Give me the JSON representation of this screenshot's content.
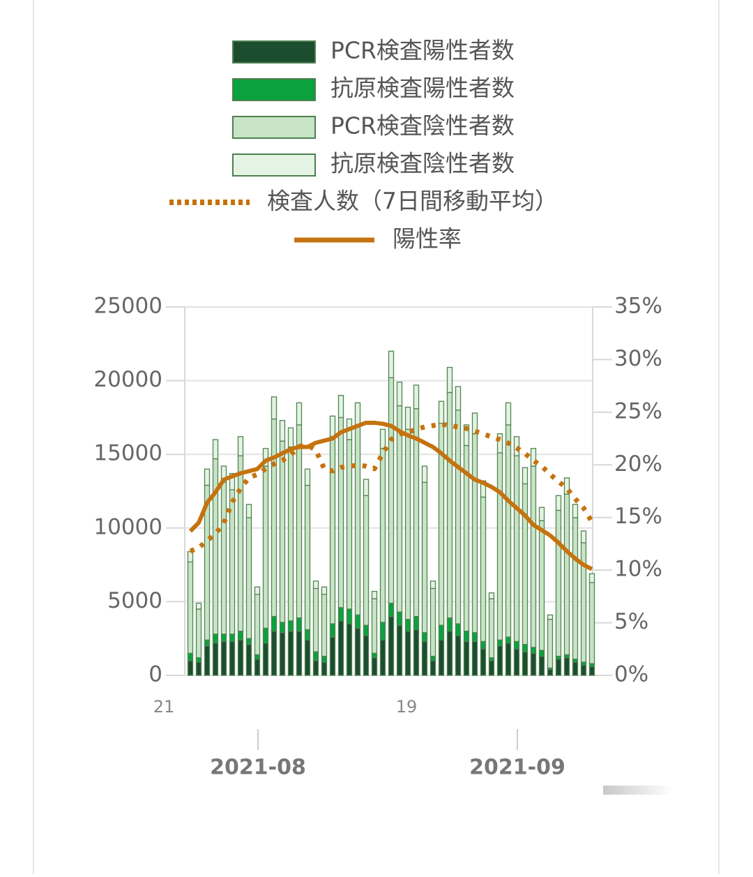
{
  "chart_data": {
    "type": "bar",
    "categories": [
      "21",
      null,
      null,
      null,
      null,
      null,
      null,
      null,
      null,
      null,
      null,
      null,
      null,
      null,
      null,
      null,
      null,
      null,
      null,
      null,
      null,
      null,
      null,
      null,
      null,
      null,
      null,
      null,
      null,
      "19",
      null,
      null,
      null,
      null,
      null,
      null,
      null,
      null,
      null,
      null,
      null,
      null,
      null,
      null,
      null,
      null,
      null,
      null,
      null,
      null,
      null,
      null
    ],
    "months": [
      null,
      null,
      null,
      null,
      null,
      null,
      null,
      null,
      null,
      null,
      null,
      "2021-08",
      null,
      null,
      null,
      null,
      null,
      null,
      null,
      null,
      null,
      null,
      null,
      null,
      null,
      null,
      null,
      null,
      null,
      null,
      null,
      null,
      null,
      null,
      null,
      null,
      null,
      null,
      null,
      null,
      null,
      null,
      "2021-09",
      null,
      null,
      null,
      null,
      null,
      null,
      null,
      null,
      null
    ],
    "series": [
      {
        "name": "PCR検査陽性者数",
        "color": "#1d4d2f",
        "values": [
          null,
          null,
          null,
          1000,
          900,
          2000,
          2200,
          2300,
          2300,
          2400,
          2100,
          1100,
          2200,
          3000,
          2900,
          3000,
          3000,
          2400,
          1000,
          900,
          2600,
          3700,
          3500,
          3200,
          2700,
          1200,
          2400,
          4000,
          3400,
          3000,
          3100,
          2300,
          1000,
          2400,
          3000,
          2700,
          2300,
          2300,
          1800,
          1000,
          2000,
          2200,
          1800,
          1600,
          1500,
          1300,
          400,
          1100,
          1200,
          900,
          700,
          600
        ]
      },
      {
        "name": "抗原検査陽性者数",
        "color": "#0ca13f",
        "values": [
          null,
          null,
          null,
          500,
          300,
          400,
          600,
          500,
          500,
          600,
          400,
          300,
          1000,
          1000,
          700,
          700,
          900,
          700,
          600,
          400,
          900,
          900,
          1000,
          900,
          700,
          300,
          1200,
          900,
          900,
          800,
          900,
          600,
          300,
          1000,
          900,
          800,
          700,
          600,
          500,
          200,
          400,
          400,
          500,
          500,
          400,
          400,
          100,
          200,
          200,
          200,
          200,
          200
        ]
      },
      {
        "name": "PCR検査陰性者数",
        "color": "#c8e4c6",
        "values": [
          null,
          null,
          null,
          6200,
          3300,
          10500,
          11900,
          10300,
          9800,
          11900,
          8200,
          4100,
          11000,
          13400,
          12300,
          11800,
          13100,
          9800,
          4300,
          4200,
          12700,
          12900,
          11500,
          12900,
          8800,
          3700,
          11800,
          15300,
          14000,
          12900,
          14100,
          10200,
          4600,
          13700,
          15300,
          14500,
          12600,
          13500,
          9800,
          4000,
          12700,
          14400,
          12600,
          10900,
          12300,
          8800,
          3300,
          9900,
          10900,
          9600,
          8100,
          5500
        ]
      },
      {
        "name": "抗原検査陰性者数",
        "color": "#e4f3e3",
        "values": [
          null,
          null,
          null,
          700,
          400,
          1100,
          1300,
          1100,
          1100,
          1300,
          900,
          500,
          1200,
          1500,
          1400,
          1300,
          1500,
          1100,
          500,
          500,
          1400,
          1500,
          1400,
          1500,
          1100,
          500,
          1300,
          1800,
          1600,
          1500,
          1600,
          1100,
          500,
          1500,
          1700,
          1600,
          1400,
          1400,
          1100,
          400,
          1300,
          1500,
          1300,
          1100,
          1200,
          900,
          300,
          1000,
          1100,
          900,
          800,
          600
        ]
      },
      {
        "name": "検査人数（7日間移動平均）",
        "type": "line",
        "dash": "dotted",
        "color": "#c5730f",
        "values": [
          null,
          null,
          null,
          8430,
          8660,
          9140,
          9610,
          10320,
          11740,
          12690,
          13400,
          13640,
          14020,
          14350,
          14580,
          14960,
          15530,
          15630,
          15290,
          14020,
          13870,
          14110,
          14200,
          14250,
          14200,
          14020,
          15060,
          16000,
          16380,
          16480,
          16710,
          16860,
          16950,
          17050,
          16950,
          16860,
          16760,
          16570,
          16380,
          16190,
          16000,
          15770,
          15440,
          15060,
          14580,
          14200,
          13640,
          13160,
          12690,
          11980,
          11360,
          10420
        ]
      },
      {
        "name": "陽性率",
        "type": "line",
        "axis": "y2",
        "color": "#c5730f",
        "values": [
          null,
          null,
          null,
          13.7,
          14.5,
          16.4,
          17.4,
          18.6,
          18.9,
          19.2,
          19.4,
          19.6,
          20.4,
          20.7,
          21.1,
          21.5,
          21.7,
          21.7,
          22.1,
          22.3,
          22.5,
          23.1,
          23.4,
          23.7,
          24.0,
          24.0,
          23.9,
          23.7,
          23.2,
          22.8,
          22.5,
          22.1,
          21.7,
          21.1,
          20.4,
          19.8,
          19.2,
          18.6,
          18.3,
          17.9,
          17.4,
          16.6,
          15.9,
          15.2,
          14.3,
          13.8,
          13.3,
          12.6,
          11.8,
          11.1,
          10.5,
          10.1
        ]
      }
    ],
    "stacked": true,
    "ylim": [
      0,
      25000
    ],
    "yticks": [
      0,
      5000,
      10000,
      15000,
      20000,
      25000
    ],
    "y2lim": [
      0,
      35
    ],
    "y2ticks": [
      {
        "value": 0,
        "label": "0%"
      },
      {
        "value": 5,
        "label": "5%"
      },
      {
        "value": 10,
        "label": "10%"
      },
      {
        "value": 15,
        "label": "15%"
      },
      {
        "value": 20,
        "label": "20%"
      },
      {
        "value": 25,
        "label": "25%"
      },
      {
        "value": 30,
        "label": "30%"
      },
      {
        "value": 35,
        "label": "35%"
      }
    ],
    "grid": true
  }
}
